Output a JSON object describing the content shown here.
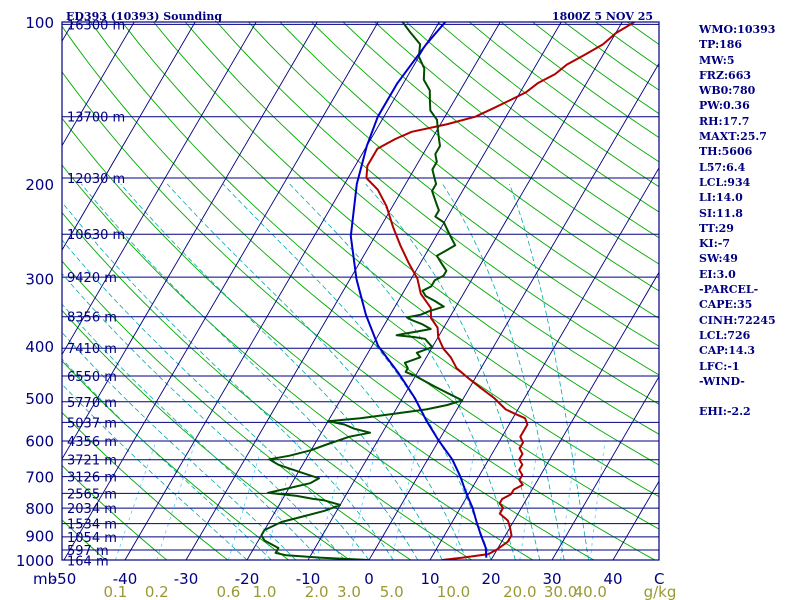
{
  "header": {
    "title": "ED393 (10393) Sounding",
    "valid_time": "1800Z  5 NOV 25"
  },
  "chart_data": {
    "type": "line",
    "title": "ED393 (10393) Sounding",
    "y_axis": {
      "label": "mb",
      "scale": "log-pressure",
      "ylim": [
        1000,
        100
      ],
      "pressure_ticks": [
        100,
        200,
        300,
        400,
        500,
        600,
        700,
        800,
        900,
        1000
      ]
    },
    "x_axis": {
      "label": "C",
      "xlim": [
        -50,
        50
      ],
      "temperature_ticks": [
        -50,
        -40,
        -30,
        -20,
        -10,
        0,
        10,
        20,
        30,
        40
      ],
      "temperature_tick_labels": [
        "-50",
        "-40",
        "-30",
        "-20",
        "-10",
        "0",
        "10",
        "20",
        "30",
        "40"
      ],
      "mixing_ratio_label": "g/kg",
      "mixing_ratio_ticks": [
        "0.1",
        "0.2",
        "0.6",
        "1.0",
        "2.0",
        "3.0",
        "5.0",
        "10.0",
        "20.0",
        "30.0",
        "40.0"
      ]
    },
    "height_levels": [
      {
        "p": 101,
        "label": "16300 m"
      },
      {
        "p": 150,
        "label": "13700 m"
      },
      {
        "p": 195,
        "label": "12030 m"
      },
      {
        "p": 248,
        "label": "10630 m"
      },
      {
        "p": 298,
        "label": "9420 m"
      },
      {
        "p": 353,
        "label": "8356 m"
      },
      {
        "p": 404,
        "label": "7410 m"
      },
      {
        "p": 455,
        "label": "6550 m"
      },
      {
        "p": 508,
        "label": "5770 m"
      },
      {
        "p": 555,
        "label": "5037 m"
      },
      {
        "p": 601,
        "label": "4356 m"
      },
      {
        "p": 651,
        "label": "3721 m"
      },
      {
        "p": 700,
        "label": "3126 m"
      },
      {
        "p": 752,
        "label": "2565 m"
      },
      {
        "p": 801,
        "label": "2034 m"
      },
      {
        "p": 856,
        "label": "1534 m"
      },
      {
        "p": 906,
        "label": "1054 m"
      },
      {
        "p": 958,
        "label": "597 m"
      },
      {
        "p": 1002,
        "label": "164 m"
      }
    ],
    "series": [
      {
        "name": "temperature",
        "color": "#b00000",
        "points": [
          [
            1000,
            12
          ],
          [
            990,
            15
          ],
          [
            975,
            19
          ],
          [
            955,
            20
          ],
          [
            925,
            21
          ],
          [
            900,
            21
          ],
          [
            870,
            20
          ],
          [
            845,
            19
          ],
          [
            820,
            17
          ],
          [
            800,
            17
          ],
          [
            785,
            16
          ],
          [
            770,
            16
          ],
          [
            755,
            17
          ],
          [
            740,
            17
          ],
          [
            725,
            18
          ],
          [
            710,
            17
          ],
          [
            695,
            17
          ],
          [
            680,
            16
          ],
          [
            665,
            16
          ],
          [
            650,
            15
          ],
          [
            635,
            15
          ],
          [
            620,
            14
          ],
          [
            605,
            14
          ],
          [
            590,
            13
          ],
          [
            575,
            13
          ],
          [
            560,
            13
          ],
          [
            545,
            12
          ],
          [
            535,
            10
          ],
          [
            525,
            8
          ],
          [
            500,
            5
          ],
          [
            480,
            2
          ],
          [
            460,
            -1
          ],
          [
            440,
            -4
          ],
          [
            420,
            -6
          ],
          [
            405,
            -8
          ],
          [
            395,
            -9
          ],
          [
            385,
            -10
          ],
          [
            370,
            -11
          ],
          [
            355,
            -13
          ],
          [
            340,
            -14
          ],
          [
            320,
            -17
          ],
          [
            300,
            -19
          ],
          [
            280,
            -22
          ],
          [
            260,
            -25
          ],
          [
            240,
            -28
          ],
          [
            220,
            -31
          ],
          [
            205,
            -34
          ],
          [
            195,
            -37
          ],
          [
            185,
            -38
          ],
          [
            178,
            -38
          ],
          [
            172,
            -38
          ],
          [
            165,
            -36
          ],
          [
            160,
            -34
          ],
          [
            155,
            -29
          ],
          [
            150,
            -25
          ],
          [
            145,
            -23
          ],
          [
            140,
            -21
          ],
          [
            135,
            -19
          ],
          [
            130,
            -18
          ],
          [
            125,
            -16
          ],
          [
            120,
            -15
          ],
          [
            115,
            -13
          ],
          [
            110,
            -11
          ],
          [
            105,
            -10
          ],
          [
            100,
            -8
          ]
        ]
      },
      {
        "name": "dewpoint",
        "color": "#004d00",
        "points": [
          [
            1000,
            0
          ],
          [
            990,
            -8
          ],
          [
            980,
            -14
          ],
          [
            970,
            -16
          ],
          [
            960,
            -16
          ],
          [
            950,
            -16
          ],
          [
            940,
            -17
          ],
          [
            920,
            -19
          ],
          [
            900,
            -20
          ],
          [
            880,
            -20
          ],
          [
            850,
            -18
          ],
          [
            830,
            -15
          ],
          [
            810,
            -12
          ],
          [
            790,
            -10
          ],
          [
            775,
            -13
          ],
          [
            770,
            -15
          ],
          [
            760,
            -18
          ],
          [
            750,
            -23
          ],
          [
            735,
            -20
          ],
          [
            720,
            -17
          ],
          [
            705,
            -16
          ],
          [
            690,
            -19
          ],
          [
            675,
            -22
          ],
          [
            665,
            -24
          ],
          [
            650,
            -26
          ],
          [
            640,
            -23
          ],
          [
            625,
            -20
          ],
          [
            610,
            -18
          ],
          [
            590,
            -15
          ],
          [
            580,
            -12
          ],
          [
            570,
            -15
          ],
          [
            560,
            -17
          ],
          [
            552,
            -20
          ],
          [
            545,
            -15
          ],
          [
            535,
            -10
          ],
          [
            525,
            -5
          ],
          [
            515,
            -2
          ],
          [
            505,
            0
          ],
          [
            495,
            -2
          ],
          [
            485,
            -4
          ],
          [
            475,
            -6
          ],
          [
            465,
            -8
          ],
          [
            455,
            -10
          ],
          [
            447,
            -12
          ],
          [
            440,
            -12
          ],
          [
            430,
            -13
          ],
          [
            420,
            -11
          ],
          [
            412,
            -12
          ],
          [
            402,
            -10
          ],
          [
            395,
            -11
          ],
          [
            388,
            -12
          ],
          [
            385,
            -14
          ],
          [
            382,
            -17
          ],
          [
            380,
            -16
          ],
          [
            376,
            -14
          ],
          [
            372,
            -12
          ],
          [
            368,
            -13
          ],
          [
            364,
            -14
          ],
          [
            358,
            -16
          ],
          [
            354,
            -17
          ],
          [
            350,
            -15
          ],
          [
            345,
            -14
          ],
          [
            338,
            -12
          ],
          [
            330,
            -14
          ],
          [
            323,
            -16
          ],
          [
            316,
            -17
          ],
          [
            310,
            -16
          ],
          [
            302,
            -16
          ],
          [
            296,
            -15
          ],
          [
            290,
            -15
          ],
          [
            284,
            -16
          ],
          [
            278,
            -17
          ],
          [
            272,
            -18
          ],
          [
            266,
            -17
          ],
          [
            260,
            -16
          ],
          [
            254,
            -17
          ],
          [
            248,
            -18
          ],
          [
            242,
            -19
          ],
          [
            236,
            -20
          ],
          [
            230,
            -22
          ],
          [
            224,
            -22
          ],
          [
            218,
            -23
          ],
          [
            212,
            -24
          ],
          [
            206,
            -25
          ],
          [
            200,
            -25
          ],
          [
            194,
            -26
          ],
          [
            188,
            -27
          ],
          [
            182,
            -27
          ],
          [
            176,
            -28
          ],
          [
            170,
            -28
          ],
          [
            164,
            -29
          ],
          [
            158,
            -30
          ],
          [
            152,
            -31
          ],
          [
            146,
            -33
          ],
          [
            140,
            -34
          ],
          [
            134,
            -35
          ],
          [
            128,
            -37
          ],
          [
            122,
            -38
          ],
          [
            116,
            -40
          ],
          [
            110,
            -41
          ],
          [
            104,
            -44
          ],
          [
            100,
            -46
          ]
        ]
      },
      {
        "name": "parcel",
        "color": "#0000cc",
        "points": [
          [
            990,
            19
          ],
          [
            950,
            18
          ],
          [
            900,
            16
          ],
          [
            850,
            14
          ],
          [
            800,
            12
          ],
          [
            760,
            10
          ],
          [
            740,
            9
          ],
          [
            700,
            7
          ],
          [
            650,
            4
          ],
          [
            600,
            0
          ],
          [
            550,
            -4
          ],
          [
            500,
            -8
          ],
          [
            450,
            -13
          ],
          [
            400,
            -19
          ],
          [
            350,
            -24
          ],
          [
            300,
            -29
          ],
          [
            250,
            -34
          ],
          [
            200,
            -38
          ],
          [
            170,
            -40
          ],
          [
            150,
            -41
          ],
          [
            130,
            -41
          ],
          [
            110,
            -40
          ],
          [
            100,
            -39
          ]
        ]
      }
    ]
  },
  "stats": [
    "WMO:10393",
    "TP:186",
    "MW:5",
    "FRZ:663",
    "WB0:780",
    "PW:0.36",
    "RH:17.7",
    "MAXT:25.7",
    "TH:5606",
    "L57:6.4",
    "LCL:934",
    "LI:14.0",
    "SI:11.8",
    "TT:29",
    "KI:-7",
    "SW:49",
    "EI:3.0",
    "-PARCEL-",
    "CAPE:35",
    "CINH:72245",
    "LCL:726",
    "CAP:14.3",
    "LFC:-1",
    "-WIND-",
    "",
    "EHI:-2.2"
  ],
  "colors": {
    "frame": "#000080",
    "isobar": "#000080",
    "isotherm": "#000080",
    "dry_adiabat": "#00aa00",
    "moist_adiabat": "#00aaaa",
    "mixing_ratio": "#55ccff",
    "mixing_label": "#999933"
  }
}
